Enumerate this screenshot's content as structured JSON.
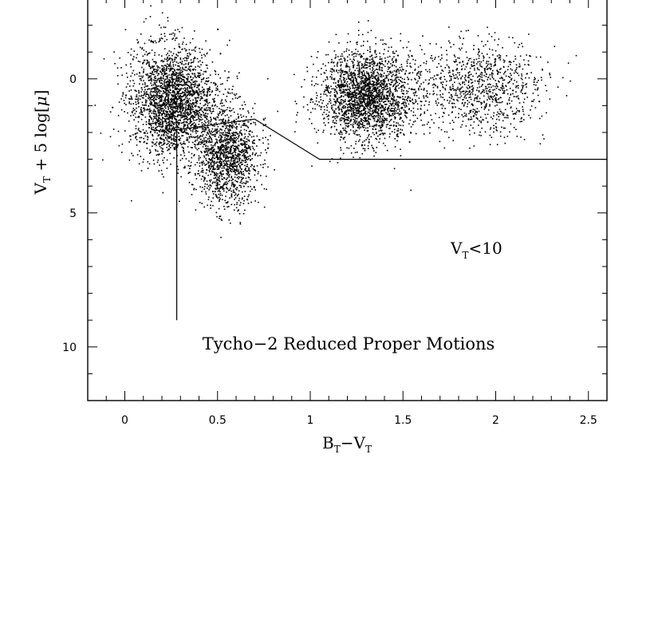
{
  "chart_data": {
    "type": "scatter",
    "xlabel": "B_T−V_T",
    "ylabel": "V_T + 5 log[μ]",
    "xlim": [
      -0.2,
      2.6
    ],
    "ylim": [
      12,
      -3
    ],
    "y_inverted": true,
    "x_ticks": [
      "0",
      "0.5",
      "1",
      "1.5",
      "2",
      "2.5"
    ],
    "x_tick_values": [
      0,
      0.5,
      1,
      1.5,
      2,
      2.5
    ],
    "y_ticks": [
      "0",
      "5",
      "10"
    ],
    "y_tick_values": [
      0,
      5,
      10
    ],
    "annotations": [
      "V_T<10",
      "Tycho−2 Reduced Proper Motions"
    ],
    "boundary_line": [
      [
        0.28,
        9
      ],
      [
        0.28,
        1.9
      ],
      [
        0.7,
        1.5
      ],
      [
        1.05,
        3.0
      ],
      [
        2.6,
        3.0
      ]
    ],
    "point_clusters": [
      {
        "center": [
          0.25,
          0.8
        ],
        "spread": [
          0.22,
          1.9
        ],
        "weight": 0.34
      },
      {
        "center": [
          0.55,
          2.8
        ],
        "spread": [
          0.17,
          1.7
        ],
        "weight": 0.2
      },
      {
        "center": [
          1.3,
          0.6
        ],
        "spread": [
          0.25,
          1.5
        ],
        "weight": 0.32
      },
      {
        "center": [
          1.9,
          0.3
        ],
        "spread": [
          0.35,
          1.6
        ],
        "weight": 0.14
      }
    ],
    "approx_points": 7000,
    "grid": false
  }
}
